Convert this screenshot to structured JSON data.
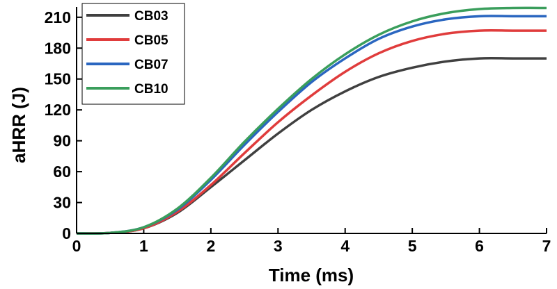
{
  "chart_data": {
    "type": "line",
    "x_label": "Time (ms)",
    "y_label": "aHRR (J)",
    "x": [
      0,
      0.5,
      1,
      1.5,
      2,
      2.5,
      3,
      3.5,
      4,
      4.5,
      5,
      5.5,
      6,
      6.5,
      7
    ],
    "series": [
      {
        "name": "CB03",
        "color": "#404040",
        "values": [
          0,
          0.5,
          5,
          20,
          45,
          71,
          97,
          120,
          138,
          152,
          161,
          167,
          170,
          170,
          170
        ]
      },
      {
        "name": "CB05",
        "color": "#e03c3c",
        "values": [
          0,
          0.5,
          5,
          21,
          47,
          78,
          108,
          134,
          157,
          175,
          187,
          194,
          197,
          197,
          197
        ]
      },
      {
        "name": "CB07",
        "color": "#2a66c0",
        "values": [
          0,
          0.5,
          6,
          23,
          52,
          86,
          118,
          147,
          170,
          189,
          201,
          208,
          211,
          211,
          211
        ]
      },
      {
        "name": "CB10",
        "color": "#3a9e5c",
        "values": [
          0,
          0.5,
          6,
          24,
          54,
          89,
          121,
          150,
          174,
          193,
          206,
          214,
          218,
          219,
          219
        ]
      }
    ],
    "xlim": [
      0,
      7
    ],
    "xticks": [
      0,
      1,
      2,
      3,
      4,
      5,
      6,
      7
    ],
    "ylim": [
      0,
      220
    ],
    "yticks": [
      0,
      30,
      60,
      90,
      120,
      150,
      180,
      210
    ],
    "legend": "upper left"
  }
}
